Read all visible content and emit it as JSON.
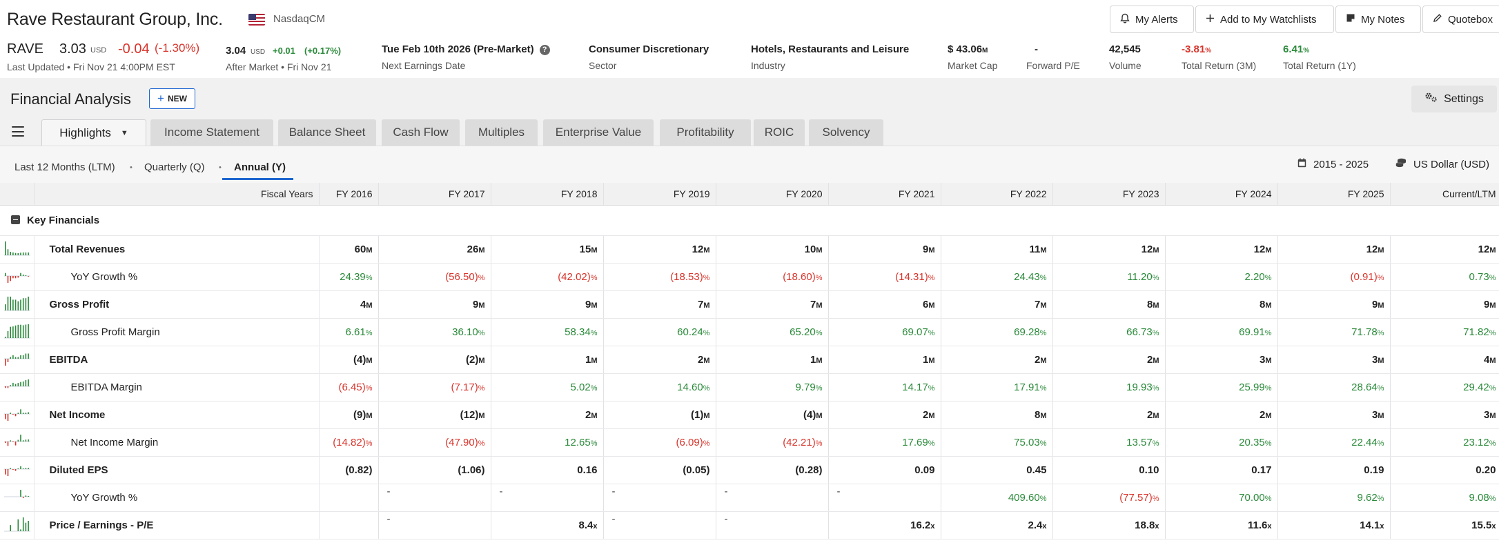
{
  "company": {
    "name": "Rave Restaurant Group, Inc.",
    "exchange": "NasdaqCM"
  },
  "header_buttons": [
    {
      "label": "My Alerts",
      "icon": "bell-icon"
    },
    {
      "label": "Add to My Watchlists",
      "icon": "plus-icon"
    },
    {
      "label": "My Notes",
      "icon": "note-icon"
    },
    {
      "label": "Quotebox",
      "icon": "pencil-icon"
    }
  ],
  "quote": {
    "ticker": "RAVE",
    "price": "3.03",
    "currency": "USD",
    "change": "-0.04",
    "change_pct": "(-1.30%)",
    "last_updated": "Last Updated • Fri Nov 21 4:00PM EST",
    "after_market": {
      "price": "3.04",
      "currency": "USD",
      "change": "+0.01",
      "change_pct": "(+0.17%)",
      "label": "After Market • Fri Nov 21"
    }
  },
  "stats": [
    {
      "value": "Tue Feb 10th 2026 (Pre-Market)",
      "label": "Next Earnings Date"
    },
    {
      "value": "Consumer Discretionary",
      "label": "Sector"
    },
    {
      "value": "Hotels, Restaurants and Leisure",
      "label": "Industry"
    },
    {
      "value": "$ 43.06",
      "unit": "M",
      "label": "Market Cap"
    },
    {
      "value": "-",
      "label": "Forward P/E"
    },
    {
      "value": "42,545",
      "label": "Volume"
    },
    {
      "value": "-3.81",
      "unit": "%",
      "label": "Total Return (3M)",
      "color": "#d9342b"
    },
    {
      "value": "6.41",
      "unit": "%",
      "label": "Total Return (1Y)",
      "color": "#2a8a3a"
    }
  ],
  "section": {
    "title": "Financial Analysis",
    "new_label": "NEW",
    "settings_label": "Settings"
  },
  "tabs": [
    {
      "label": "Highlights",
      "active": true
    },
    {
      "label": "Income Statement"
    },
    {
      "label": "Balance Sheet"
    },
    {
      "label": "Cash Flow"
    },
    {
      "label": "Multiples"
    },
    {
      "label": "Enterprise Value"
    },
    {
      "label": "Profitability"
    },
    {
      "label": "ROIC"
    },
    {
      "label": "Solvency"
    }
  ],
  "periods": [
    {
      "label": "Last 12 Months (LTM)"
    },
    {
      "label": "Quarterly (Q)"
    },
    {
      "label": "Annual (Y)",
      "active": true
    }
  ],
  "range_label": "2015 - 2025",
  "currency_label": "US Dollar (USD)",
  "table": {
    "fiscal_label": "Fiscal Years",
    "columns": [
      "FY 2016",
      "FY 2017",
      "FY 2018",
      "FY 2019",
      "FY 2020",
      "FY 2021",
      "FY 2022",
      "FY 2023",
      "FY 2024",
      "FY 2025",
      "Current/LTM"
    ],
    "group": "Key Financials",
    "rows": [
      {
        "label": "Total Revenues",
        "sub": false,
        "unit": "M",
        "cells": [
          "60",
          "26",
          "15",
          "12",
          "10",
          "9",
          "11",
          "12",
          "12",
          "12",
          "12"
        ]
      },
      {
        "label": "YoY Growth %",
        "sub": true,
        "unit": "%",
        "cells": [
          "24.39",
          "(56.50)",
          "(42.02)",
          "(18.53)",
          "(18.60)",
          "(14.31)",
          "24.43",
          "11.20",
          "2.20",
          "(0.91)",
          "0.73"
        ]
      },
      {
        "label": "Gross Profit",
        "sub": false,
        "unit": "M",
        "cells": [
          "4",
          "9",
          "9",
          "7",
          "7",
          "6",
          "7",
          "8",
          "8",
          "9",
          "9"
        ]
      },
      {
        "label": "Gross Profit Margin",
        "sub": true,
        "unit": "%",
        "cells": [
          "6.61",
          "36.10",
          "58.34",
          "60.24",
          "65.20",
          "69.07",
          "69.28",
          "66.73",
          "69.91",
          "71.78",
          "71.82"
        ]
      },
      {
        "label": "EBITDA",
        "sub": false,
        "unit": "M",
        "cells": [
          "(4)",
          "(2)",
          "1",
          "2",
          "1",
          "1",
          "2",
          "2",
          "3",
          "3",
          "4"
        ]
      },
      {
        "label": "EBITDA Margin",
        "sub": true,
        "unit": "%",
        "cells": [
          "(6.45)",
          "(7.17)",
          "5.02",
          "14.60",
          "9.79",
          "14.17",
          "17.91",
          "19.93",
          "25.99",
          "28.64",
          "29.42"
        ]
      },
      {
        "label": "Net Income",
        "sub": false,
        "unit": "M",
        "cells": [
          "(9)",
          "(12)",
          "2",
          "(1)",
          "(4)",
          "2",
          "8",
          "2",
          "2",
          "3",
          "3"
        ]
      },
      {
        "label": "Net Income Margin",
        "sub": true,
        "unit": "%",
        "cells": [
          "(14.82)",
          "(47.90)",
          "12.65",
          "(6.09)",
          "(42.21)",
          "17.69",
          "75.03",
          "13.57",
          "20.35",
          "22.44",
          "23.12"
        ]
      },
      {
        "label": "Diluted EPS",
        "sub": false,
        "unit": "",
        "cells": [
          "(0.82)",
          "(1.06)",
          "0.16",
          "(0.05)",
          "(0.28)",
          "0.09",
          "0.45",
          "0.10",
          "0.17",
          "0.19",
          "0.20"
        ]
      },
      {
        "label": "YoY Growth %",
        "sub": true,
        "unit": "%",
        "cells": [
          "",
          "-",
          "-",
          "-",
          "-",
          "-",
          "409.60",
          "(77.57)",
          "70.00",
          "9.62",
          "9.08"
        ]
      },
      {
        "label": "Price / Earnings - P/E",
        "sub": false,
        "unit": "x",
        "cells": [
          "",
          "-",
          "8.4",
          "-",
          "-",
          "16.2",
          "2.4",
          "18.8",
          "11.6",
          "14.1",
          "15.5"
        ]
      }
    ]
  }
}
